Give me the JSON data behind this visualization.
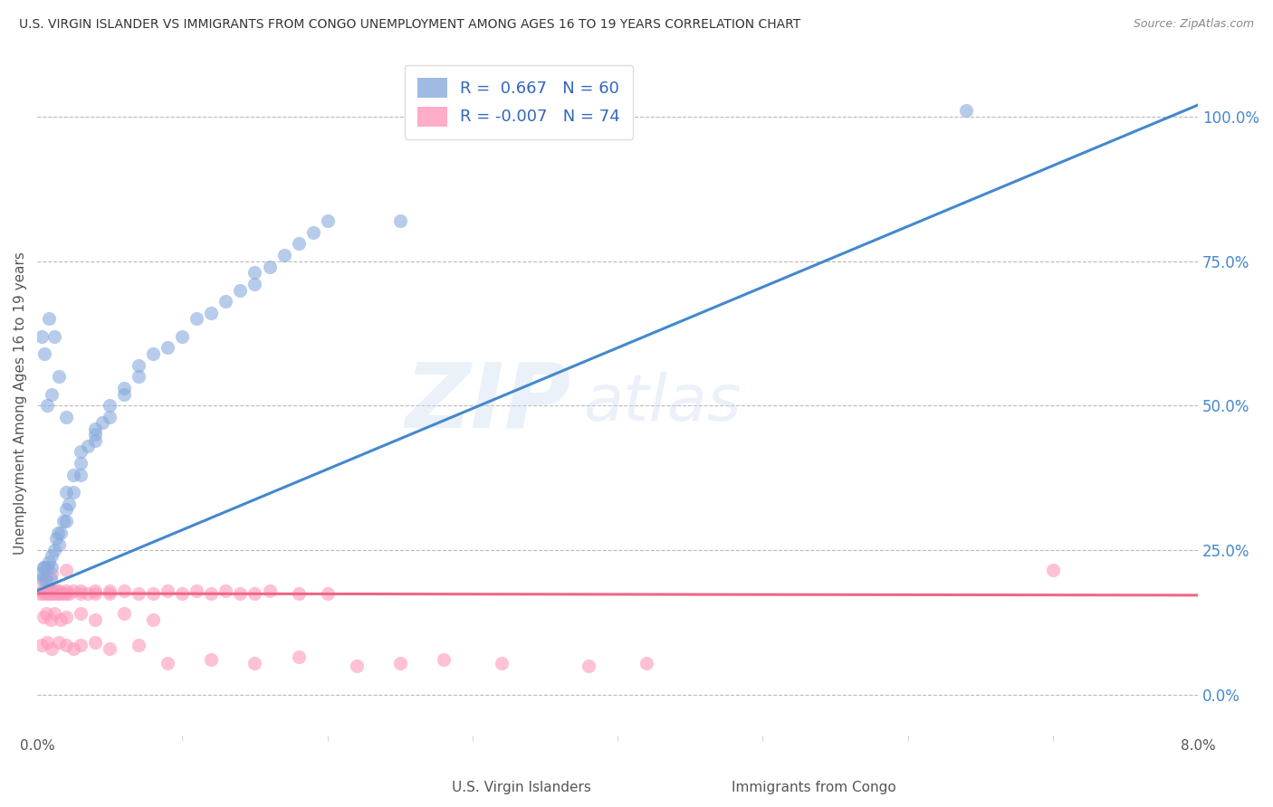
{
  "title": "U.S. VIRGIN ISLANDER VS IMMIGRANTS FROM CONGO UNEMPLOYMENT AMONG AGES 16 TO 19 YEARS CORRELATION CHART",
  "source": "Source: ZipAtlas.com",
  "ylabel": "Unemployment Among Ages 16 to 19 years",
  "xmin": 0.0,
  "xmax": 0.08,
  "ymin": -0.07,
  "ymax": 1.08,
  "right_yticks": [
    0.0,
    0.25,
    0.5,
    0.75,
    1.0
  ],
  "right_yticklabels": [
    "0.0%",
    "25.0%",
    "50.0%",
    "75.0%",
    "100.0%"
  ],
  "blue_color": "#88AADD",
  "pink_color": "#FF99BB",
  "blue_line_color": "#4488CC",
  "pink_line_color": "#EE6688",
  "blue_R": 0.667,
  "blue_N": 60,
  "pink_R": -0.007,
  "pink_N": 74,
  "legend_label_blue": "U.S. Virgin Islanders",
  "legend_label_pink": "Immigrants from Congo",
  "watermark_zip": "ZIP",
  "watermark_atlas": "atlas",
  "title_color": "#333333",
  "source_color": "#888888",
  "axis_label_color": "#555555",
  "right_tick_color": "#4488CC",
  "grid_color": "#BBBBBB",
  "blue_trend_x0": 0.0,
  "blue_trend_y0": 0.18,
  "blue_trend_x1": 0.08,
  "blue_trend_y1": 1.02,
  "pink_trend_x0": 0.0,
  "pink_trend_y0": 0.175,
  "pink_trend_x1": 0.08,
  "pink_trend_y1": 0.172,
  "blue_scatter_x": [
    0.0002,
    0.0003,
    0.0004,
    0.0005,
    0.0006,
    0.0007,
    0.0008,
    0.0009,
    0.001,
    0.001,
    0.0012,
    0.0013,
    0.0014,
    0.0015,
    0.0016,
    0.0018,
    0.002,
    0.002,
    0.002,
    0.0022,
    0.0025,
    0.0025,
    0.003,
    0.003,
    0.003,
    0.0035,
    0.004,
    0.004,
    0.004,
    0.0045,
    0.005,
    0.005,
    0.006,
    0.006,
    0.007,
    0.007,
    0.008,
    0.009,
    0.01,
    0.011,
    0.012,
    0.013,
    0.014,
    0.015,
    0.015,
    0.016,
    0.017,
    0.018,
    0.019,
    0.02,
    0.0005,
    0.0007,
    0.001,
    0.0015,
    0.002,
    0.025,
    0.0003,
    0.0008,
    0.0012,
    0.064
  ],
  "blue_scatter_y": [
    0.21,
    0.2,
    0.22,
    0.22,
    0.2,
    0.22,
    0.23,
    0.2,
    0.22,
    0.24,
    0.25,
    0.27,
    0.28,
    0.26,
    0.28,
    0.3,
    0.3,
    0.32,
    0.35,
    0.33,
    0.35,
    0.38,
    0.38,
    0.4,
    0.42,
    0.43,
    0.44,
    0.46,
    0.45,
    0.47,
    0.48,
    0.5,
    0.52,
    0.53,
    0.55,
    0.57,
    0.59,
    0.6,
    0.62,
    0.65,
    0.66,
    0.68,
    0.7,
    0.71,
    0.73,
    0.74,
    0.76,
    0.78,
    0.8,
    0.82,
    0.59,
    0.5,
    0.52,
    0.55,
    0.48,
    0.82,
    0.62,
    0.65,
    0.62,
    1.01
  ],
  "pink_scatter_x": [
    0.0002,
    0.0003,
    0.0004,
    0.0005,
    0.0006,
    0.0007,
    0.0008,
    0.0009,
    0.001,
    0.001,
    0.0012,
    0.0013,
    0.0014,
    0.0015,
    0.0016,
    0.0018,
    0.002,
    0.002,
    0.0022,
    0.0025,
    0.003,
    0.003,
    0.0035,
    0.004,
    0.004,
    0.005,
    0.005,
    0.006,
    0.007,
    0.008,
    0.009,
    0.01,
    0.011,
    0.012,
    0.013,
    0.014,
    0.015,
    0.016,
    0.018,
    0.02,
    0.0004,
    0.0006,
    0.0009,
    0.0012,
    0.0016,
    0.002,
    0.003,
    0.004,
    0.006,
    0.008,
    0.0003,
    0.0007,
    0.001,
    0.0015,
    0.002,
    0.0025,
    0.003,
    0.004,
    0.005,
    0.007,
    0.009,
    0.012,
    0.015,
    0.018,
    0.022,
    0.025,
    0.028,
    0.032,
    0.038,
    0.042,
    0.0005,
    0.001,
    0.002,
    0.07
  ],
  "pink_scatter_y": [
    0.175,
    0.18,
    0.175,
    0.18,
    0.175,
    0.18,
    0.175,
    0.18,
    0.18,
    0.175,
    0.175,
    0.18,
    0.175,
    0.18,
    0.175,
    0.175,
    0.18,
    0.175,
    0.175,
    0.18,
    0.18,
    0.175,
    0.175,
    0.18,
    0.175,
    0.18,
    0.175,
    0.18,
    0.175,
    0.175,
    0.18,
    0.175,
    0.18,
    0.175,
    0.18,
    0.175,
    0.175,
    0.18,
    0.175,
    0.175,
    0.135,
    0.14,
    0.13,
    0.14,
    0.13,
    0.135,
    0.14,
    0.13,
    0.14,
    0.13,
    0.085,
    0.09,
    0.08,
    0.09,
    0.085,
    0.08,
    0.085,
    0.09,
    0.08,
    0.085,
    0.055,
    0.06,
    0.055,
    0.065,
    0.05,
    0.055,
    0.06,
    0.055,
    0.05,
    0.055,
    0.2,
    0.21,
    0.215,
    0.215
  ]
}
